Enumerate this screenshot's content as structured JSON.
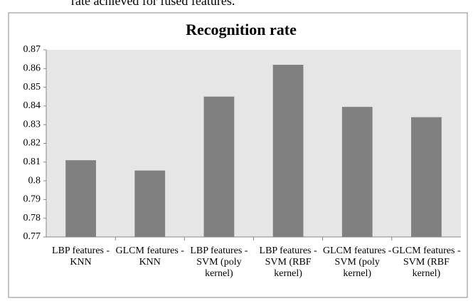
{
  "caption": "rate achieved for fused features.",
  "chart_data": {
    "type": "bar",
    "title": "Recognition rate",
    "categories": [
      "LBP features - KNN",
      "GLCM features - KNN",
      "LBP features - SVM (poly kernel)",
      "LBP features - SVM (RBF kernel)",
      "GLCM features - SVM (poly kernel)",
      "GLCM features - SVM (RBF kernel)"
    ],
    "values": [
      0.811,
      0.8055,
      0.845,
      0.862,
      0.8395,
      0.834
    ],
    "color": "#808080",
    "ylim": [
      0.77,
      0.87
    ],
    "yticks": [
      0.77,
      0.78,
      0.79,
      0.8,
      0.81,
      0.82,
      0.83,
      0.84,
      0.85,
      0.86,
      0.87
    ],
    "grid": false
  }
}
